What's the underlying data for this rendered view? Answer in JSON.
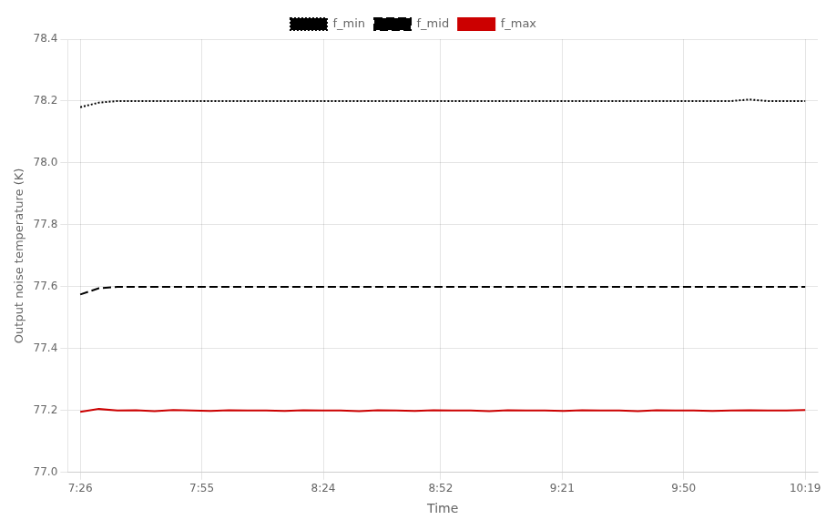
{
  "chart_data": {
    "type": "line",
    "xlabel": "Time",
    "ylabel": "Output noise temperature (K)",
    "x": [
      446,
      450.4358974358974,
      454.8717948717949,
      459.3076923076923,
      463.7435897435897,
      468.1794871794872,
      472.6153846153846,
      477.05128205128204,
      481.4871794871795,
      485.9230769230769,
      490.35897435897436,
      494.7948717948718,
      499.2307692307692,
      503.6666666666667,
      508.1025641025641,
      512.5384615384615,
      516.974358974359,
      521.4102564102564,
      525.8461538461538,
      530.2820512820513,
      534.7179487179487,
      539.1538461538462,
      543.5897435897435,
      548.025641025641,
      552.4615384615385,
      556.8974358974359,
      561.3333333333333,
      565.7692307692307,
      570.2051282051282,
      574.6410256410256,
      579.0769230769231,
      583.5128205128206,
      587.9487179487179,
      592.3846153846154,
      596.8205128205128,
      601.2564102564103,
      605.6923076923077,
      610.1282051282051,
      614.5641025641025,
      619
    ],
    "series": [
      {
        "name": "f_min",
        "color": "#000000",
        "line_style": "dotted",
        "values": [
          78.18,
          78.195,
          78.2,
          78.2,
          78.2,
          78.2,
          78.2,
          78.2,
          78.2,
          78.2,
          78.2,
          78.2,
          78.2,
          78.2,
          78.2,
          78.2,
          78.2,
          78.2,
          78.2,
          78.2,
          78.2,
          78.2,
          78.2,
          78.2,
          78.2,
          78.2,
          78.2,
          78.2,
          78.2,
          78.2,
          78.2,
          78.2,
          78.2,
          78.2,
          78.2,
          78.2,
          78.205,
          78.2,
          78.2,
          78.2
        ]
      },
      {
        "name": "f_mid",
        "color": "#000000",
        "line_style": "dashed",
        "values": [
          77.575,
          77.595,
          77.6,
          77.6,
          77.6,
          77.6,
          77.6,
          77.6,
          77.6,
          77.6,
          77.6,
          77.6,
          77.6,
          77.6,
          77.6,
          77.6,
          77.6,
          77.6,
          77.6,
          77.6,
          77.6,
          77.6,
          77.6,
          77.6,
          77.6,
          77.6,
          77.6,
          77.6,
          77.6,
          77.6,
          77.6,
          77.6,
          77.6,
          77.6,
          77.6,
          77.6,
          77.6,
          77.6,
          77.6,
          77.6
        ]
      },
      {
        "name": "f_max",
        "color": "#cc0000",
        "line_style": "solid",
        "values": [
          77.196,
          77.205,
          77.2,
          77.201,
          77.198,
          77.202,
          77.2,
          77.199,
          77.201,
          77.2,
          77.2,
          77.199,
          77.201,
          77.2,
          77.2,
          77.198,
          77.201,
          77.2,
          77.199,
          77.201,
          77.2,
          77.2,
          77.198,
          77.201,
          77.2,
          77.2,
          77.199,
          77.201,
          77.2,
          77.2,
          77.198,
          77.201,
          77.2,
          77.2,
          77.199,
          77.2,
          77.201,
          77.2,
          77.2,
          77.202
        ]
      }
    ],
    "xlim": [
      443,
      622
    ],
    "xticks": [
      {
        "value": 446,
        "label": "7:26"
      },
      {
        "value": 475,
        "label": "7:55"
      },
      {
        "value": 504,
        "label": "8:24"
      },
      {
        "value": 532,
        "label": "8:52"
      },
      {
        "value": 561,
        "label": "9:21"
      },
      {
        "value": 590,
        "label": "9:50"
      },
      {
        "value": 619,
        "label": "10:19"
      }
    ],
    "ylim": [
      77.0,
      78.4
    ],
    "yticks": [
      {
        "value": 77.0,
        "label": "77.0"
      },
      77.2,
      77.4,
      77.6,
      77.8,
      {
        "value": 78.0,
        "label": "78.0"
      },
      78.2,
      78.4
    ],
    "grid": true,
    "legend": "top"
  }
}
